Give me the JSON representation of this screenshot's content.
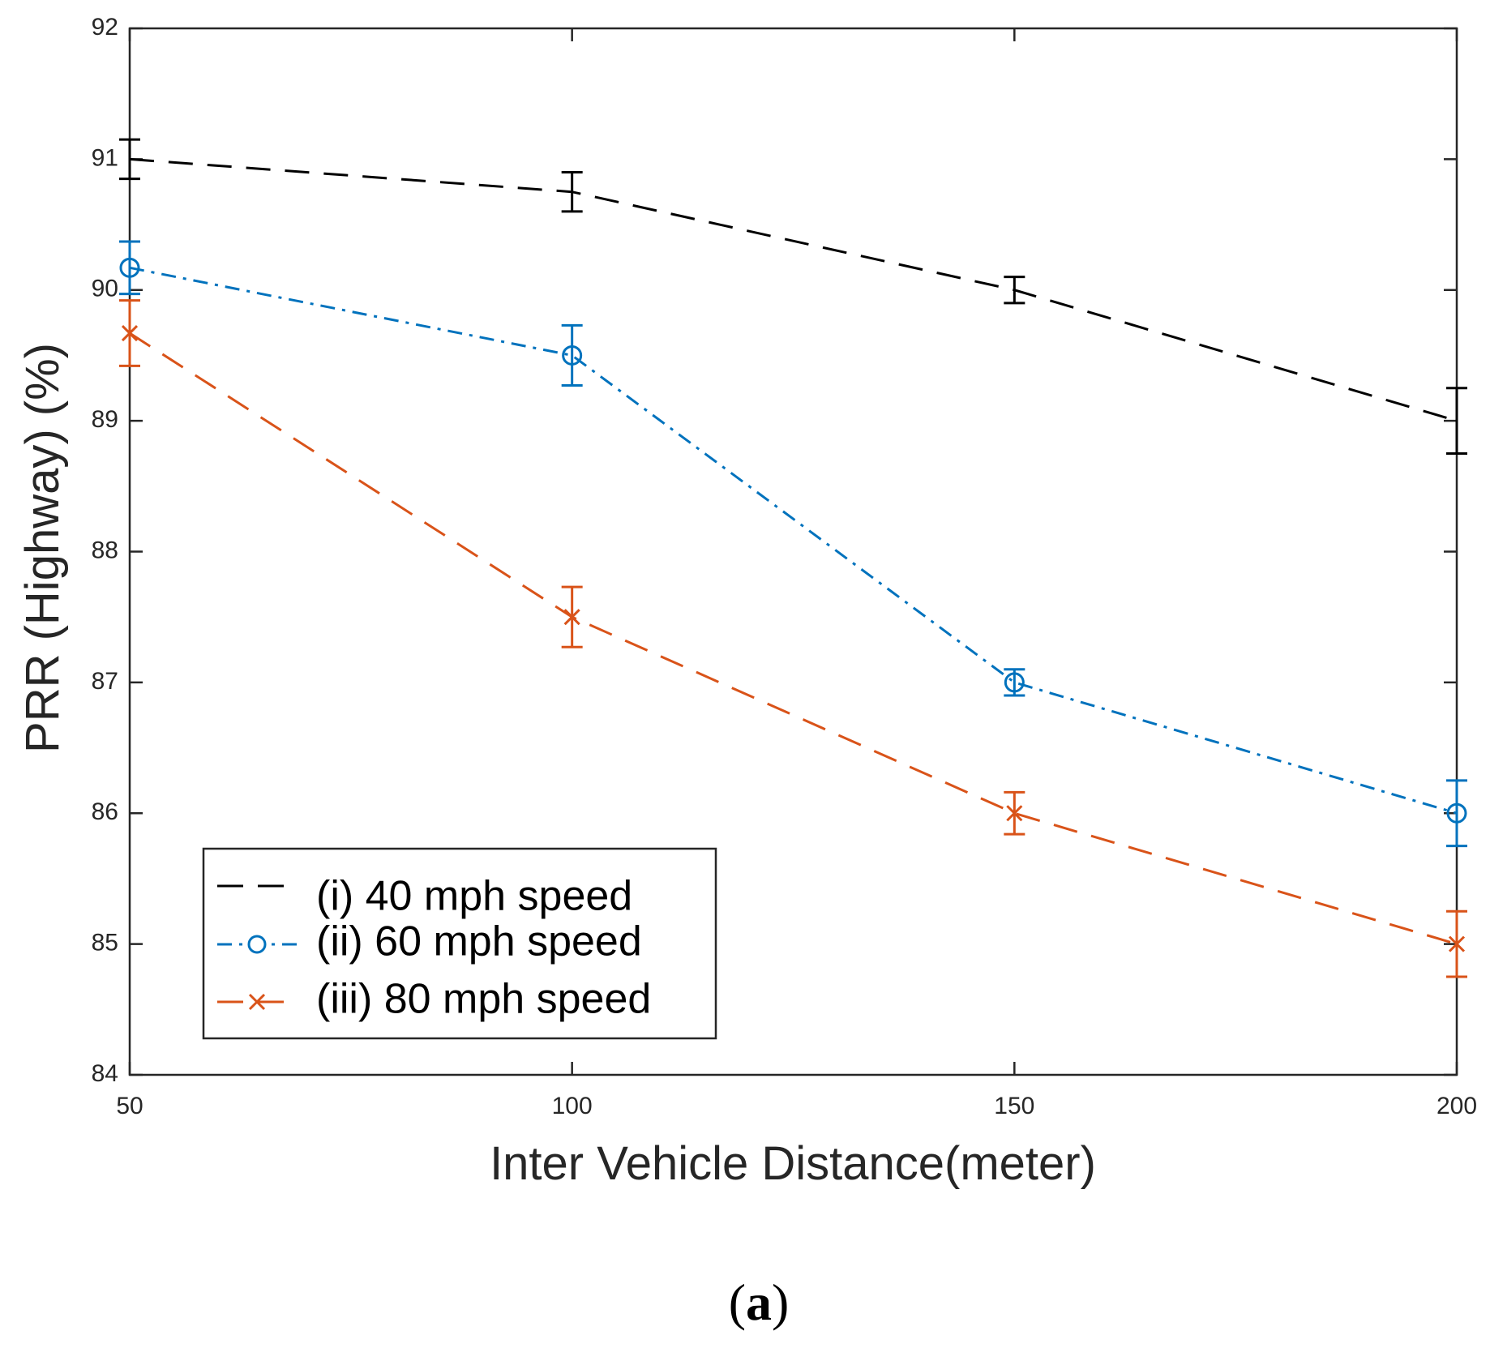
{
  "chart_data": {
    "type": "line",
    "title": "",
    "xlabel": "Inter Vehicle Distance(meter)",
    "ylabel": "PRR (Highway) (%)",
    "xlim": [
      50,
      200
    ],
    "ylim": [
      84,
      92
    ],
    "grid": false,
    "legend_position": "bottom-left",
    "xticks": [
      "50",
      "100",
      "150",
      "200"
    ],
    "yticks": [
      "84",
      "85",
      "86",
      "87",
      "88",
      "89",
      "90",
      "91",
      "92"
    ],
    "x": [
      50,
      100,
      150,
      200
    ],
    "series": [
      {
        "name": "(i) 40 mph speed",
        "values": [
          91.0,
          90.75,
          90.0,
          89.0
        ],
        "errors": [
          0.15,
          0.15,
          0.1,
          0.25
        ],
        "color": "#000000",
        "line_style": "dashed",
        "marker": "none"
      },
      {
        "name": "(ii) 60 mph speed",
        "values": [
          90.17,
          89.5,
          87.0,
          86.0
        ],
        "errors": [
          0.2,
          0.23,
          0.1,
          0.25
        ],
        "color": "#0072BD",
        "line_style": "dash-dot",
        "marker": "circle"
      },
      {
        "name": "(iii) 80 mph speed",
        "values": [
          89.67,
          87.5,
          86.0,
          85.0
        ],
        "errors": [
          0.25,
          0.23,
          0.16,
          0.25
        ],
        "color": "#D95319",
        "line_style": "dashed",
        "marker": "x"
      }
    ]
  },
  "caption": {
    "open": "(",
    "letter": "a",
    "close": ")"
  }
}
